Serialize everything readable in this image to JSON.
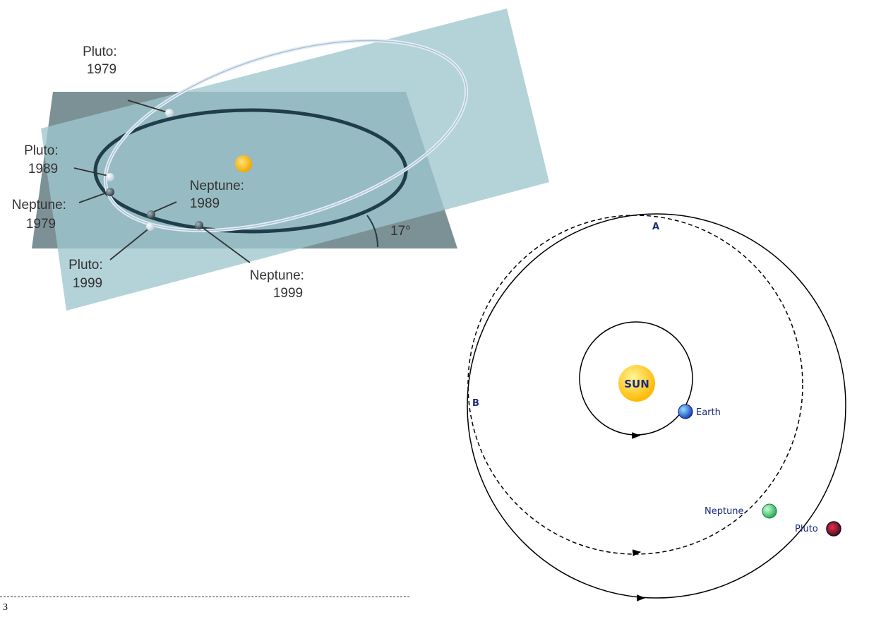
{
  "left_diagram": {
    "labels": {
      "pluto_1979": [
        "Pluto:",
        "1979"
      ],
      "pluto_1989": [
        "Pluto:",
        "1989"
      ],
      "neptune_1979": [
        "Neptune:",
        "1979"
      ],
      "neptune_1989": [
        "Neptune:",
        "1989"
      ],
      "pluto_1999": [
        "Pluto:",
        "1999"
      ],
      "neptune_1999": [
        "Neptune:",
        "1999"
      ],
      "angle": "17°"
    },
    "colors": {
      "ecliptic_plane": "#7c9195",
      "pluto_plane": "#9fc6ce",
      "sun": "#f5b400",
      "neptune_orbit": "#1f3d4a",
      "pluto_orbit": "#e4eef4"
    }
  },
  "right_diagram": {
    "sun_label": "SUN",
    "earth_label": "Earth",
    "neptune_label": "Neptune",
    "pluto_label": "Pluto",
    "point_a": "A",
    "point_b": "B",
    "colors": {
      "sun": "#ffc400",
      "earth": "#2a6fd6",
      "neptune": "#3cc46a",
      "pluto": "#8a1020",
      "text": "#1a2a7a"
    }
  },
  "footer": {
    "page_number": "3"
  }
}
